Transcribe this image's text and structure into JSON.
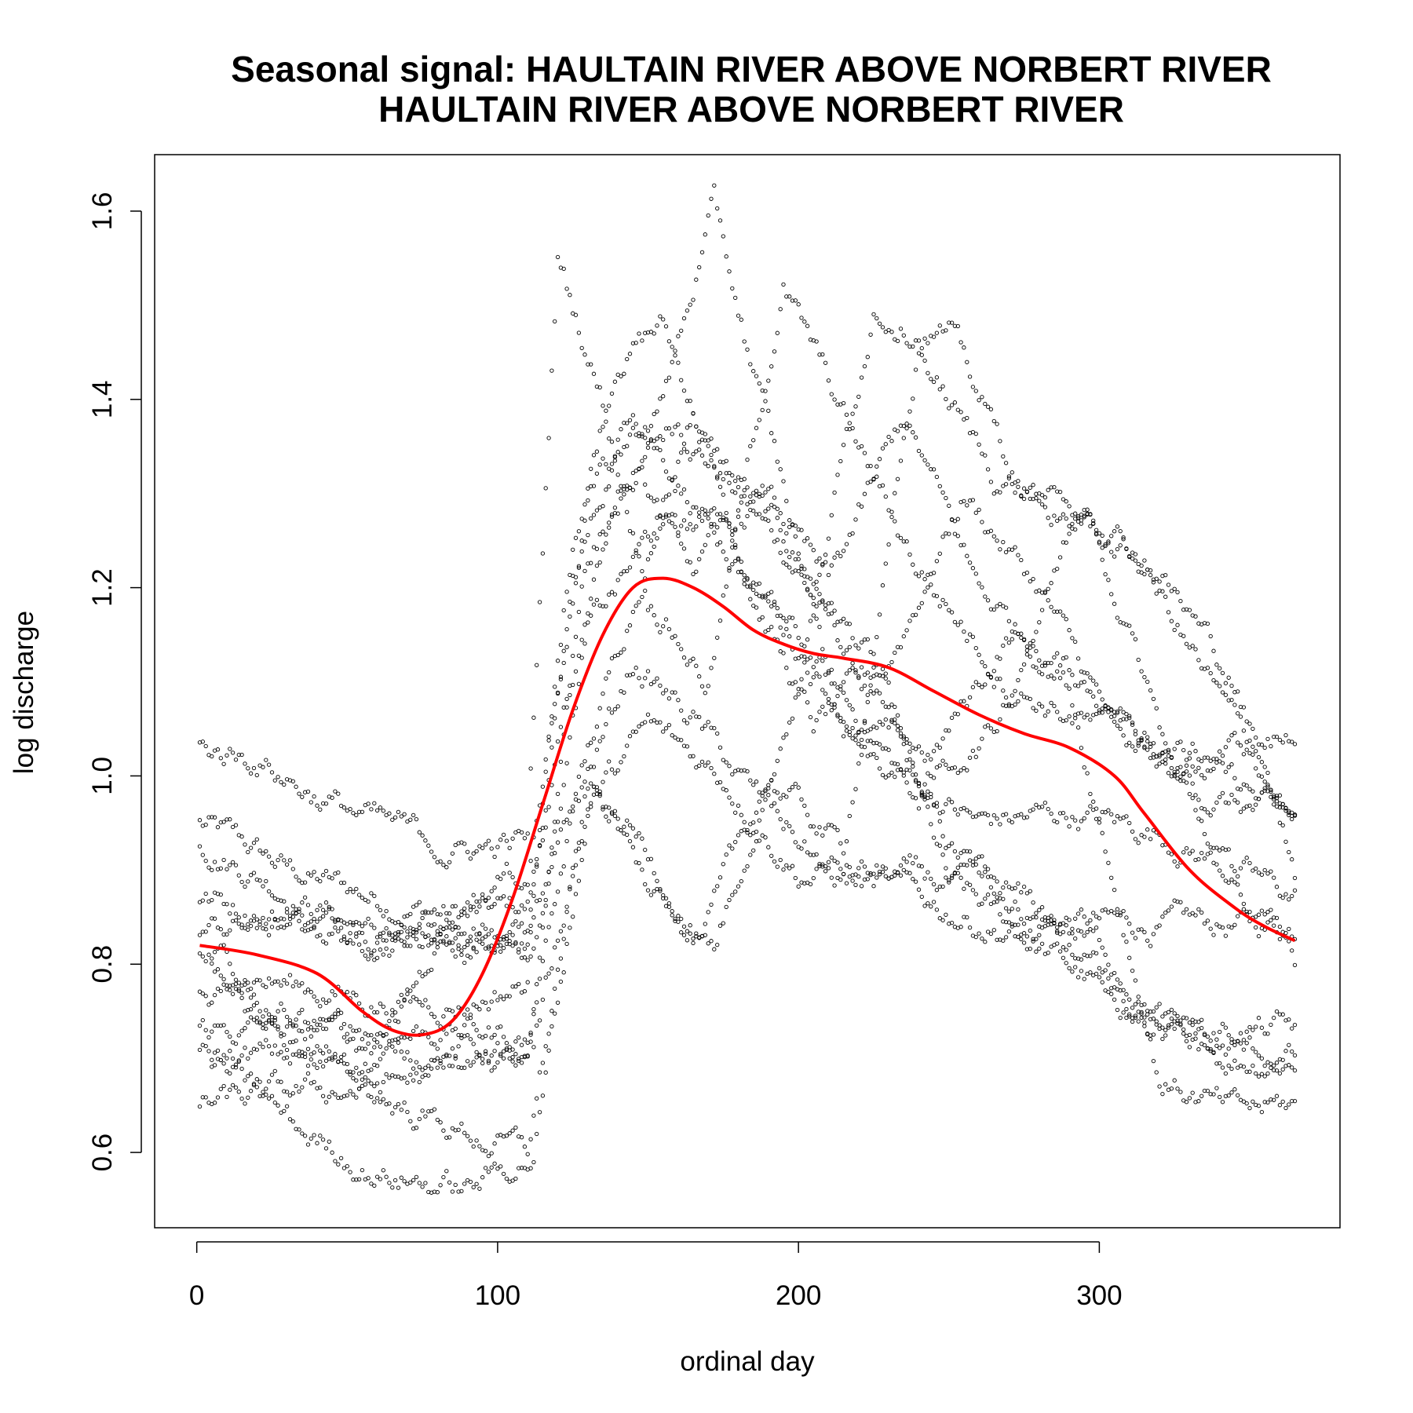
{
  "chart_data": {
    "type": "scatter",
    "title": "Seasonal signal: HAULTAIN RIVER ABOVE NORBERT RIVER",
    "subtitle": "HAULTAIN RIVER ABOVE NORBERT RIVER",
    "xlabel": "ordinal day",
    "ylabel": "log discharge",
    "xlim": [
      -14,
      380
    ],
    "ylim": [
      0.52,
      1.66
    ],
    "x_ticks": [
      0,
      100,
      200,
      300
    ],
    "y_ticks": [
      0.6,
      0.8,
      1.0,
      1.2,
      1.4,
      1.6
    ],
    "x_tick_labels": [
      "0",
      "100",
      "200",
      "300"
    ],
    "y_tick_labels": [
      "0.6",
      "0.8",
      "1.0",
      "1.2",
      "1.4",
      "1.6"
    ],
    "grid": false,
    "colors": {
      "points": "#000000",
      "smooth": "#ff0000"
    },
    "series": [
      {
        "kind": "points",
        "yearly_traces": [
          [
            [
              1,
              0.95
            ],
            [
              30,
              0.9
            ],
            [
              60,
              0.87
            ],
            [
              90,
              0.85
            ],
            [
              110,
              0.86
            ],
            [
              125,
              1.1
            ],
            [
              140,
              1.3
            ],
            [
              160,
              1.38
            ],
            [
              180,
              1.3
            ],
            [
              200,
              1.22
            ],
            [
              230,
              1.05
            ],
            [
              250,
              0.92
            ],
            [
              280,
              0.85
            ],
            [
              310,
              0.84
            ],
            [
              340,
              0.84
            ],
            [
              365,
              0.84
            ]
          ],
          [
            [
              1,
              0.93
            ],
            [
              30,
              0.88
            ],
            [
              60,
              0.83
            ],
            [
              90,
              0.82
            ],
            [
              110,
              0.83
            ],
            [
              125,
              1.25
            ],
            [
              140,
              1.45
            ],
            [
              155,
              1.48
            ],
            [
              170,
              1.35
            ],
            [
              195,
              1.25
            ],
            [
              225,
              1.12
            ],
            [
              250,
              0.88
            ],
            [
              280,
              0.82
            ],
            [
              310,
              0.75
            ],
            [
              340,
              0.7
            ],
            [
              365,
              0.7
            ]
          ],
          [
            [
              1,
              0.87
            ],
            [
              30,
              0.85
            ],
            [
              60,
              0.84
            ],
            [
              90,
              0.84
            ],
            [
              110,
              0.82
            ],
            [
              125,
              1.2
            ],
            [
              145,
              1.4
            ],
            [
              160,
              1.32
            ],
            [
              185,
              1.2
            ],
            [
              210,
              1.1
            ],
            [
              235,
              1.0
            ],
            [
              260,
              0.95
            ],
            [
              290,
              0.96
            ],
            [
              320,
              0.94
            ],
            [
              345,
              0.9
            ],
            [
              365,
              0.87
            ]
          ],
          [
            [
              1,
              0.84
            ],
            [
              30,
              0.84
            ],
            [
              60,
              0.83
            ],
            [
              90,
              0.83
            ],
            [
              110,
              0.82
            ],
            [
              128,
              1.0
            ],
            [
              148,
              1.22
            ],
            [
              165,
              1.4
            ],
            [
              185,
              1.2
            ],
            [
              205,
              1.05
            ],
            [
              230,
              1.12
            ],
            [
              255,
              1.3
            ],
            [
              280,
              1.2
            ],
            [
              305,
              1.05
            ],
            [
              335,
              0.98
            ],
            [
              365,
              0.95
            ]
          ],
          [
            [
              1,
              0.81
            ],
            [
              30,
              0.78
            ],
            [
              60,
              0.76
            ],
            [
              90,
              0.76
            ],
            [
              110,
              0.78
            ],
            [
              130,
              1.15
            ],
            [
              150,
              1.25
            ],
            [
              170,
              1.27
            ],
            [
              195,
              1.16
            ],
            [
              220,
              1.05
            ],
            [
              245,
              1.02
            ],
            [
              270,
              1.15
            ],
            [
              295,
              1.1
            ],
            [
              325,
              1.02
            ],
            [
              350,
              0.98
            ],
            [
              365,
              0.95
            ]
          ],
          [
            [
              1,
              0.73
            ],
            [
              30,
              0.73
            ],
            [
              60,
              0.73
            ],
            [
              90,
              0.73
            ],
            [
              112,
              0.72
            ],
            [
              130,
              0.97
            ],
            [
              150,
              1.05
            ],
            [
              175,
              1.0
            ],
            [
              200,
              0.9
            ],
            [
              230,
              0.88
            ],
            [
              255,
              0.85
            ],
            [
              285,
              0.82
            ],
            [
              315,
              0.74
            ],
            [
              340,
              0.73
            ],
            [
              365,
              0.73
            ]
          ],
          [
            [
              1,
              0.7
            ],
            [
              30,
              0.7
            ],
            [
              60,
              0.7
            ],
            [
              90,
              0.71
            ],
            [
              110,
              0.69
            ],
            [
              125,
              0.96
            ],
            [
              145,
              1.12
            ],
            [
              165,
              1.06
            ],
            [
              185,
              0.98
            ],
            [
              210,
              0.9
            ],
            [
              240,
              0.89
            ],
            [
              270,
              0.87
            ],
            [
              300,
              0.82
            ],
            [
              330,
              0.71
            ],
            [
              365,
              0.7
            ]
          ],
          [
            [
              1,
              0.65
            ],
            [
              30,
              0.66
            ],
            [
              60,
              0.67
            ],
            [
              90,
              0.69
            ],
            [
              110,
              0.7
            ],
            [
              128,
              1.22
            ],
            [
              145,
              1.32
            ],
            [
              165,
              1.22
            ],
            [
              190,
              1.3
            ],
            [
              210,
              1.2
            ],
            [
              235,
              1.38
            ],
            [
              260,
              1.2
            ],
            [
              290,
              1.1
            ],
            [
              320,
              0.68
            ],
            [
              345,
              0.64
            ],
            [
              365,
              0.65
            ]
          ],
          [
            [
              1,
              1.03
            ],
            [
              20,
              1.02
            ],
            [
              40,
              0.98
            ],
            [
              60,
              0.95
            ],
            [
              85,
              0.92
            ],
            [
              110,
              0.93
            ],
            [
              120,
              1.55
            ],
            [
              135,
              1.4
            ],
            [
              150,
              1.2
            ],
            [
              170,
              1.1
            ],
            [
              195,
              1.52
            ],
            [
              215,
              1.38
            ],
            [
              240,
              1.22
            ],
            [
              270,
              1.1
            ],
            [
              300,
              1.05
            ],
            [
              330,
              1.02
            ],
            [
              365,
              1.04
            ]
          ],
          [
            [
              1,
              0.78
            ],
            [
              30,
              0.72
            ],
            [
              60,
              0.66
            ],
            [
              90,
              0.62
            ],
            [
              110,
              0.6
            ],
            [
              130,
              0.98
            ],
            [
              150,
              0.92
            ],
            [
              168,
              0.82
            ],
            [
              190,
              1.0
            ],
            [
              215,
              0.92
            ],
            [
              240,
              1.45
            ],
            [
              265,
              1.32
            ],
            [
              290,
              1.28
            ],
            [
              315,
              1.22
            ],
            [
              340,
              1.08
            ],
            [
              365,
              0.95
            ]
          ],
          [
            [
              5,
              0.7
            ],
            [
              35,
              0.62
            ],
            [
              60,
              0.58
            ],
            [
              90,
              0.56
            ],
            [
              112,
              0.6
            ],
            [
              132,
              1.0
            ],
            [
              150,
              0.88
            ],
            [
              172,
              0.82
            ],
            [
              200,
              1.1
            ],
            [
              225,
              1.5
            ],
            [
              250,
              1.47
            ],
            [
              275,
              1.3
            ],
            [
              300,
              1.25
            ],
            [
              325,
              1.0
            ],
            [
              350,
              0.86
            ],
            [
              365,
              0.8
            ]
          ],
          [
            [
              5,
              0.8
            ],
            [
              35,
              0.74
            ],
            [
              60,
              0.7
            ],
            [
              90,
              0.88
            ],
            [
              110,
              0.9
            ],
            [
              130,
              1.3
            ],
            [
              155,
              1.4
            ],
            [
              172,
              1.6
            ],
            [
              195,
              1.3
            ],
            [
              215,
              1.05
            ],
            [
              240,
              0.98
            ],
            [
              265,
              1.05
            ],
            [
              295,
              1.3
            ],
            [
              320,
              1.22
            ],
            [
              345,
              1.1
            ],
            [
              365,
              0.9
            ]
          ]
        ]
      },
      {
        "kind": "smooth",
        "x": [
          1,
          20,
          40,
          55,
          65,
          75,
          85,
          95,
          105,
          115,
          125,
          135,
          145,
          155,
          165,
          175,
          185,
          195,
          205,
          215,
          230,
          245,
          260,
          275,
          290,
          305,
          315,
          330,
          345,
          355,
          365
        ],
        "y": [
          0.82,
          0.81,
          0.79,
          0.75,
          0.73,
          0.725,
          0.74,
          0.79,
          0.87,
          0.97,
          1.07,
          1.15,
          1.2,
          1.21,
          1.2,
          1.18,
          1.155,
          1.14,
          1.13,
          1.125,
          1.115,
          1.09,
          1.065,
          1.045,
          1.03,
          1.0,
          0.96,
          0.9,
          0.86,
          0.84,
          0.825
        ]
      }
    ]
  }
}
